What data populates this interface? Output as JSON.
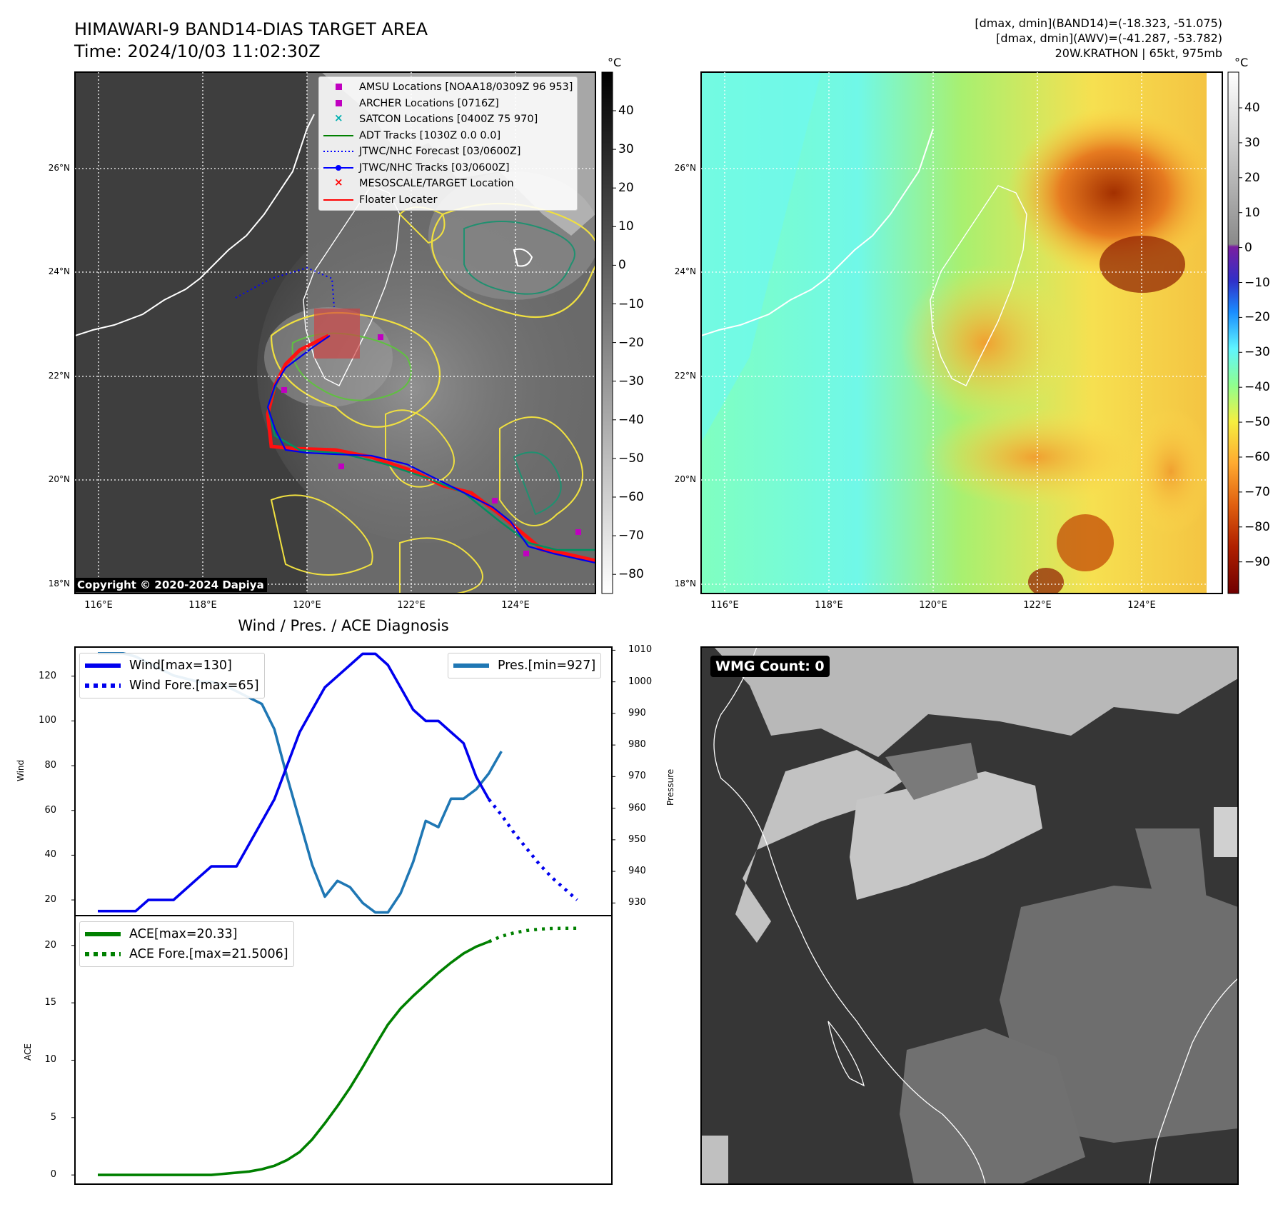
{
  "header": {
    "title_line1": "HIMAWARI-9 BAND14-DIAS TARGET AREA",
    "title_line2": "Time: 2024/10/03 11:02:30Z",
    "info_line1": "[dmax, dmin](BAND14)=(-18.323, -51.075)",
    "info_line2": "[dmax, dmin](AWV)=(-41.287, -53.782)",
    "info_line3": "20W.KRATHON | 65kt, 975mb"
  },
  "map": {
    "lon_ticks": [
      "116°E",
      "118°E",
      "120°E",
      "122°E",
      "124°E"
    ],
    "lat_ticks": [
      "26°N",
      "24°N",
      "22°N",
      "20°N",
      "18°N"
    ],
    "copyright": "Copyright © 2020-2024 Dapiya",
    "legend": [
      {
        "label": "AMSU Locations [NOAA18/0309Z 96 953]",
        "symbol": "square",
        "color": "#c000c0"
      },
      {
        "label": "ARCHER Locations [0716Z]",
        "symbol": "square",
        "color": "#c000c0"
      },
      {
        "label": "SATCON Locations [0400Z 75 970]",
        "symbol": "x",
        "color": "#00b0b0"
      },
      {
        "label": "ADT Tracks [1030Z 0.0 0.0]",
        "symbol": "line",
        "color": "#008000"
      },
      {
        "label": "JTWC/NHC Forecast [03/0600Z]",
        "symbol": "dotted",
        "color": "#0000ff"
      },
      {
        "label": "JTWC/NHC Tracks [03/0600Z]",
        "symbol": "line-dot",
        "color": "#0000ff"
      },
      {
        "label": "MESOSCALE/TARGET Location",
        "symbol": "x",
        "color": "#ff0000"
      },
      {
        "label": "Floater Locater",
        "symbol": "line",
        "color": "#ff0000"
      }
    ]
  },
  "colorbar_left": {
    "unit": "°C",
    "ticks": [
      "40",
      "30",
      "20",
      "10",
      "0",
      "−10",
      "−20",
      "−30",
      "−40",
      "−50",
      "−60",
      "−70",
      "−80"
    ]
  },
  "colorbar_right": {
    "unit": "°C",
    "ticks": [
      "40",
      "30",
      "20",
      "10",
      "0",
      "−10",
      "−20",
      "−30",
      "−40",
      "−50",
      "−60",
      "−70",
      "−80",
      "−90"
    ]
  },
  "diagnosis": {
    "title": "Wind / Pres. / ACE Diagnosis",
    "wind_ylabel": "Wind",
    "pres_ylabel": "Pressure",
    "ace_ylabel": "ACE",
    "legend_wind": "Wind[max=130]",
    "legend_wind_fore": "Wind Fore.[max=65]",
    "legend_pres": "Pres.[min=927]",
    "legend_ace": "ACE[max=20.33]",
    "legend_ace_fore": "ACE Fore.[max=21.5006]",
    "wind_ticks": [
      "120",
      "100",
      "80",
      "60",
      "40",
      "20"
    ],
    "pres_ticks": [
      "1010",
      "1000",
      "990",
      "980",
      "970",
      "960",
      "950",
      "940",
      "930"
    ],
    "ace_ticks": [
      "20",
      "15",
      "10",
      "5",
      "0"
    ]
  },
  "wmg": {
    "label": "WMG Count: 0"
  },
  "chart_data": [
    {
      "type": "line",
      "title": "Wind / Pres. / ACE Diagnosis",
      "ylabel": "Wind",
      "ylim": [
        13,
        133
      ],
      "series": [
        {
          "name": "Wind[max=130]",
          "color": "#0000ee",
          "values": [
            15,
            15,
            15,
            15,
            20,
            20,
            20,
            25,
            30,
            35,
            35,
            35,
            45,
            55,
            65,
            80,
            95,
            105,
            115,
            120,
            125,
            130,
            130,
            125,
            115,
            105,
            100,
            100,
            95,
            90,
            75,
            65
          ]
        },
        {
          "name": "Wind Fore.[max=65]",
          "color": "#0000ee",
          "style": "dotted",
          "x_start": 31,
          "values": [
            65,
            58,
            50,
            43,
            36,
            30,
            25,
            20
          ]
        }
      ]
    },
    {
      "type": "line",
      "ylabel": "Pressure",
      "ylim": [
        926,
        1011
      ],
      "series": [
        {
          "name": "Pres.[min=927]",
          "color": "#1f77b4",
          "values": [
            1009,
            1009,
            1009,
            1008,
            1006,
            1004,
            1002,
            1001,
            1000,
            1000,
            999,
            997,
            995,
            993,
            985,
            970,
            956,
            942,
            932,
            937,
            935,
            930,
            927,
            927,
            933,
            943,
            956,
            954,
            963,
            963,
            966,
            971,
            978
          ]
        }
      ]
    },
    {
      "type": "line",
      "ylabel": "ACE",
      "ylim": [
        -0.8,
        22.6
      ],
      "series": [
        {
          "name": "ACE[max=20.33]",
          "color": "#008000",
          "values": [
            0,
            0,
            0,
            0,
            0,
            0,
            0,
            0,
            0,
            0,
            0.1,
            0.2,
            0.3,
            0.5,
            0.8,
            1.3,
            2.0,
            3.1,
            4.5,
            6.0,
            7.6,
            9.4,
            11.3,
            13.1,
            14.5,
            15.6,
            16.6,
            17.6,
            18.5,
            19.3,
            19.9,
            20.33
          ]
        },
        {
          "name": "ACE Fore.[max=21.5006]",
          "color": "#008000",
          "style": "dotted",
          "x_start": 31,
          "values": [
            20.33,
            20.8,
            21.1,
            21.3,
            21.42,
            21.48,
            21.5,
            21.5006
          ]
        }
      ]
    }
  ]
}
